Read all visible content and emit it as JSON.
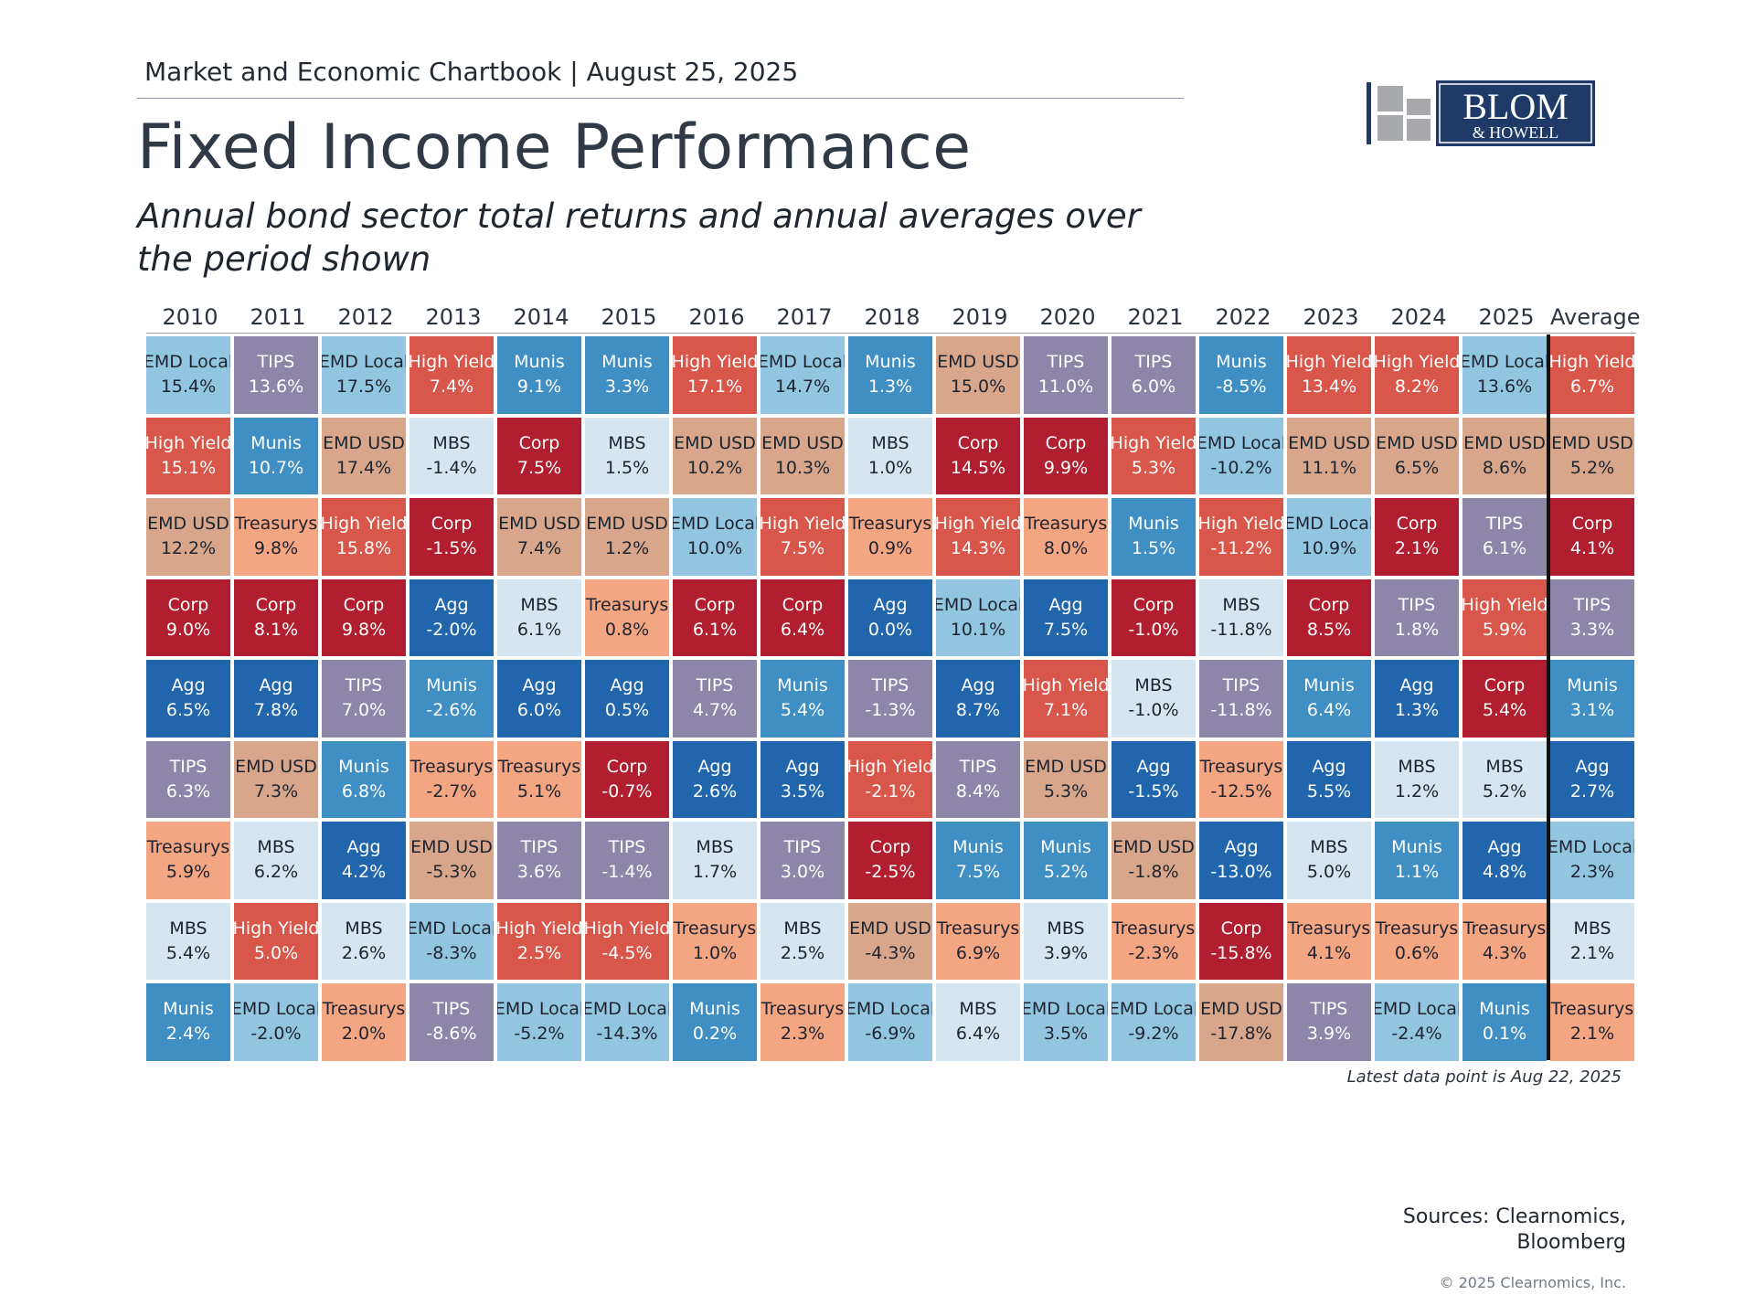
{
  "header": {
    "chartbook": "Market and Economic Chartbook | August 25, 2025",
    "title": "Fixed Income Performance",
    "subtitle": "Annual bond sector total returns and annual averages over the period shown"
  },
  "logo": {
    "line1": "BLOM",
    "line2": "& HOWELL"
  },
  "chart_data": {
    "type": "table",
    "columns": [
      "2010",
      "2011",
      "2012",
      "2013",
      "2014",
      "2015",
      "2016",
      "2017",
      "2018",
      "2019",
      "2020",
      "2021",
      "2022",
      "2023",
      "2024",
      "2025",
      "Average"
    ],
    "rows": [
      [
        {
          "s": "EMD Local",
          "v": "15.4%"
        },
        {
          "s": "TIPS",
          "v": "13.6%"
        },
        {
          "s": "EMD Local",
          "v": "17.5%"
        },
        {
          "s": "High Yield",
          "v": "7.4%"
        },
        {
          "s": "Munis",
          "v": "9.1%"
        },
        {
          "s": "Munis",
          "v": "3.3%"
        },
        {
          "s": "High Yield",
          "v": "17.1%"
        },
        {
          "s": "EMD Local",
          "v": "14.7%"
        },
        {
          "s": "Munis",
          "v": "1.3%"
        },
        {
          "s": "EMD USD",
          "v": "15.0%"
        },
        {
          "s": "TIPS",
          "v": "11.0%"
        },
        {
          "s": "TIPS",
          "v": "6.0%"
        },
        {
          "s": "Munis",
          "v": "-8.5%"
        },
        {
          "s": "High Yield",
          "v": "13.4%"
        },
        {
          "s": "High Yield",
          "v": "8.2%"
        },
        {
          "s": "EMD Local",
          "v": "13.6%"
        },
        {
          "s": "High Yield",
          "v": "6.7%"
        }
      ],
      [
        {
          "s": "High Yield",
          "v": "15.1%"
        },
        {
          "s": "Munis",
          "v": "10.7%"
        },
        {
          "s": "EMD USD",
          "v": "17.4%"
        },
        {
          "s": "MBS",
          "v": "-1.4%"
        },
        {
          "s": "Corp",
          "v": "7.5%"
        },
        {
          "s": "MBS",
          "v": "1.5%"
        },
        {
          "s": "EMD USD",
          "v": "10.2%"
        },
        {
          "s": "EMD USD",
          "v": "10.3%"
        },
        {
          "s": "MBS",
          "v": "1.0%"
        },
        {
          "s": "Corp",
          "v": "14.5%"
        },
        {
          "s": "Corp",
          "v": "9.9%"
        },
        {
          "s": "High Yield",
          "v": "5.3%"
        },
        {
          "s": "EMD Local",
          "v": "-10.2%"
        },
        {
          "s": "EMD USD",
          "v": "11.1%"
        },
        {
          "s": "EMD USD",
          "v": "6.5%"
        },
        {
          "s": "EMD USD",
          "v": "8.6%"
        },
        {
          "s": "EMD USD",
          "v": "5.2%"
        }
      ],
      [
        {
          "s": "EMD USD",
          "v": "12.2%"
        },
        {
          "s": "Treasurys",
          "v": "9.8%"
        },
        {
          "s": "High Yield",
          "v": "15.8%"
        },
        {
          "s": "Corp",
          "v": "-1.5%"
        },
        {
          "s": "EMD USD",
          "v": "7.4%"
        },
        {
          "s": "EMD USD",
          "v": "1.2%"
        },
        {
          "s": "EMD Local",
          "v": "10.0%"
        },
        {
          "s": "High Yield",
          "v": "7.5%"
        },
        {
          "s": "Treasurys",
          "v": "0.9%"
        },
        {
          "s": "High Yield",
          "v": "14.3%"
        },
        {
          "s": "Treasurys",
          "v": "8.0%"
        },
        {
          "s": "Munis",
          "v": "1.5%"
        },
        {
          "s": "High Yield",
          "v": "-11.2%"
        },
        {
          "s": "EMD Local",
          "v": "10.9%"
        },
        {
          "s": "Corp",
          "v": "2.1%"
        },
        {
          "s": "TIPS",
          "v": "6.1%"
        },
        {
          "s": "Corp",
          "v": "4.1%"
        }
      ],
      [
        {
          "s": "Corp",
          "v": "9.0%"
        },
        {
          "s": "Corp",
          "v": "8.1%"
        },
        {
          "s": "Corp",
          "v": "9.8%"
        },
        {
          "s": "Agg",
          "v": "-2.0%"
        },
        {
          "s": "MBS",
          "v": "6.1%"
        },
        {
          "s": "Treasurys",
          "v": "0.8%"
        },
        {
          "s": "Corp",
          "v": "6.1%"
        },
        {
          "s": "Corp",
          "v": "6.4%"
        },
        {
          "s": "Agg",
          "v": "0.0%"
        },
        {
          "s": "EMD Local",
          "v": "10.1%"
        },
        {
          "s": "Agg",
          "v": "7.5%"
        },
        {
          "s": "Corp",
          "v": "-1.0%"
        },
        {
          "s": "MBS",
          "v": "-11.8%"
        },
        {
          "s": "Corp",
          "v": "8.5%"
        },
        {
          "s": "TIPS",
          "v": "1.8%"
        },
        {
          "s": "High Yield",
          "v": "5.9%"
        },
        {
          "s": "TIPS",
          "v": "3.3%"
        }
      ],
      [
        {
          "s": "Agg",
          "v": "6.5%"
        },
        {
          "s": "Agg",
          "v": "7.8%"
        },
        {
          "s": "TIPS",
          "v": "7.0%"
        },
        {
          "s": "Munis",
          "v": "-2.6%"
        },
        {
          "s": "Agg",
          "v": "6.0%"
        },
        {
          "s": "Agg",
          "v": "0.5%"
        },
        {
          "s": "TIPS",
          "v": "4.7%"
        },
        {
          "s": "Munis",
          "v": "5.4%"
        },
        {
          "s": "TIPS",
          "v": "-1.3%"
        },
        {
          "s": "Agg",
          "v": "8.7%"
        },
        {
          "s": "High Yield",
          "v": "7.1%"
        },
        {
          "s": "MBS",
          "v": "-1.0%"
        },
        {
          "s": "TIPS",
          "v": "-11.8%"
        },
        {
          "s": "Munis",
          "v": "6.4%"
        },
        {
          "s": "Agg",
          "v": "1.3%"
        },
        {
          "s": "Corp",
          "v": "5.4%"
        },
        {
          "s": "Munis",
          "v": "3.1%"
        }
      ],
      [
        {
          "s": "TIPS",
          "v": "6.3%"
        },
        {
          "s": "EMD USD",
          "v": "7.3%"
        },
        {
          "s": "Munis",
          "v": "6.8%"
        },
        {
          "s": "Treasurys",
          "v": "-2.7%"
        },
        {
          "s": "Treasurys",
          "v": "5.1%"
        },
        {
          "s": "Corp",
          "v": "-0.7%"
        },
        {
          "s": "Agg",
          "v": "2.6%"
        },
        {
          "s": "Agg",
          "v": "3.5%"
        },
        {
          "s": "High Yield",
          "v": "-2.1%"
        },
        {
          "s": "TIPS",
          "v": "8.4%"
        },
        {
          "s": "EMD USD",
          "v": "5.3%"
        },
        {
          "s": "Agg",
          "v": "-1.5%"
        },
        {
          "s": "Treasurys",
          "v": "-12.5%"
        },
        {
          "s": "Agg",
          "v": "5.5%"
        },
        {
          "s": "MBS",
          "v": "1.2%"
        },
        {
          "s": "MBS",
          "v": "5.2%"
        },
        {
          "s": "Agg",
          "v": "2.7%"
        }
      ],
      [
        {
          "s": "Treasurys",
          "v": "5.9%"
        },
        {
          "s": "MBS",
          "v": "6.2%"
        },
        {
          "s": "Agg",
          "v": "4.2%"
        },
        {
          "s": "EMD USD",
          "v": "-5.3%"
        },
        {
          "s": "TIPS",
          "v": "3.6%"
        },
        {
          "s": "TIPS",
          "v": "-1.4%"
        },
        {
          "s": "MBS",
          "v": "1.7%"
        },
        {
          "s": "TIPS",
          "v": "3.0%"
        },
        {
          "s": "Corp",
          "v": "-2.5%"
        },
        {
          "s": "Munis",
          "v": "7.5%"
        },
        {
          "s": "Munis",
          "v": "5.2%"
        },
        {
          "s": "EMD USD",
          "v": "-1.8%"
        },
        {
          "s": "Agg",
          "v": "-13.0%"
        },
        {
          "s": "MBS",
          "v": "5.0%"
        },
        {
          "s": "Munis",
          "v": "1.1%"
        },
        {
          "s": "Agg",
          "v": "4.8%"
        },
        {
          "s": "EMD Local",
          "v": "2.3%"
        }
      ],
      [
        {
          "s": "MBS",
          "v": "5.4%"
        },
        {
          "s": "High Yield",
          "v": "5.0%"
        },
        {
          "s": "MBS",
          "v": "2.6%"
        },
        {
          "s": "EMD Local",
          "v": "-8.3%"
        },
        {
          "s": "High Yield",
          "v": "2.5%"
        },
        {
          "s": "High Yield",
          "v": "-4.5%"
        },
        {
          "s": "Treasurys",
          "v": "1.0%"
        },
        {
          "s": "MBS",
          "v": "2.5%"
        },
        {
          "s": "EMD USD",
          "v": "-4.3%"
        },
        {
          "s": "Treasurys",
          "v": "6.9%"
        },
        {
          "s": "MBS",
          "v": "3.9%"
        },
        {
          "s": "Treasurys",
          "v": "-2.3%"
        },
        {
          "s": "Corp",
          "v": "-15.8%"
        },
        {
          "s": "Treasurys",
          "v": "4.1%"
        },
        {
          "s": "Treasurys",
          "v": "0.6%"
        },
        {
          "s": "Treasurys",
          "v": "4.3%"
        },
        {
          "s": "MBS",
          "v": "2.1%"
        }
      ],
      [
        {
          "s": "Munis",
          "v": "2.4%"
        },
        {
          "s": "EMD Local",
          "v": "-2.0%"
        },
        {
          "s": "Treasurys",
          "v": "2.0%"
        },
        {
          "s": "TIPS",
          "v": "-8.6%"
        },
        {
          "s": "EMD Local",
          "v": "-5.2%"
        },
        {
          "s": "EMD Local",
          "v": "-14.3%"
        },
        {
          "s": "Munis",
          "v": "0.2%"
        },
        {
          "s": "Treasurys",
          "v": "2.3%"
        },
        {
          "s": "EMD Local",
          "v": "-6.9%"
        },
        {
          "s": "MBS",
          "v": "6.4%"
        },
        {
          "s": "EMD Local",
          "v": "3.5%"
        },
        {
          "s": "EMD Local",
          "v": "-9.2%"
        },
        {
          "s": "EMD USD",
          "v": "-17.8%"
        },
        {
          "s": "TIPS",
          "v": "3.9%"
        },
        {
          "s": "EMD Local",
          "v": "-2.4%"
        },
        {
          "s": "Munis",
          "v": "0.1%"
        },
        {
          "s": "Treasurys",
          "v": "2.1%"
        }
      ]
    ],
    "colors": {
      "EMD Local": "#92c5df",
      "TIPS": "#8e86a8",
      "High Yield": "#d9564a",
      "Munis": "#3f8fc4",
      "EMD USD": "#d8a68b",
      "MBS": "#d5e6f0",
      "Corp": "#b01e2f",
      "Treasurys": "#f4a582",
      "Agg": "#2166ac"
    },
    "dark_text_sectors": [
      "EMD Local",
      "EMD USD",
      "MBS",
      "Treasurys"
    ]
  },
  "footer": {
    "note": "Latest data point is Aug 22, 2025",
    "sources_line1": "Sources: Clearnomics,",
    "sources_line2": "Bloomberg",
    "copyright": "© 2025 Clearnomics, Inc."
  }
}
